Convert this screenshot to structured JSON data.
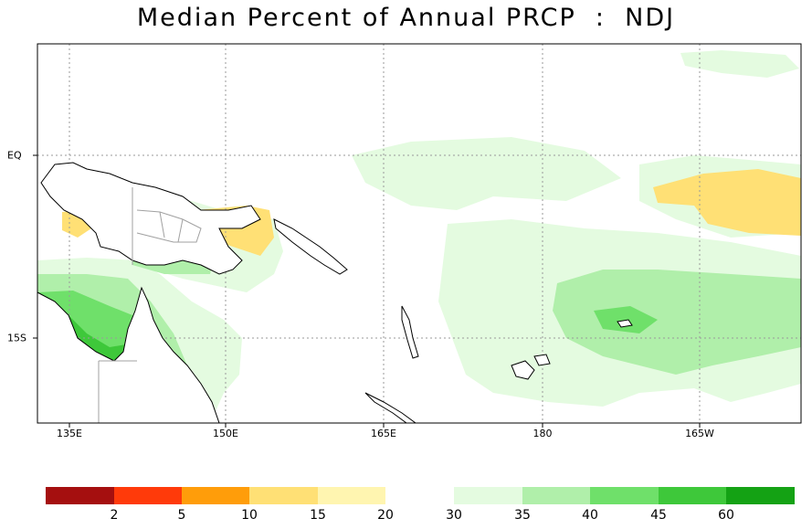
{
  "title": "Median Percent of Annual PRCP  :  NDJ",
  "x_ticks": [
    "135E",
    "150E",
    "165E",
    "180",
    "165W"
  ],
  "y_ticks": [
    "EQ",
    "15S"
  ],
  "legend": {
    "dry": {
      "colors": [
        "#a50f0f",
        "#ff3a0a",
        "#ff9d0a",
        "#ffe075",
        "#fff5b0"
      ],
      "labels": [
        "2",
        "5",
        "10",
        "15",
        "20"
      ]
    },
    "wet": {
      "colors": [
        "#e4fbe0",
        "#b0efaa",
        "#6fe06a",
        "#3ec83a",
        "#14a214"
      ],
      "labels": [
        "30",
        "35",
        "40",
        "45",
        "60"
      ]
    }
  },
  "colors": {
    "land_outline": "#000000",
    "grid": "#9a9a9a",
    "border_lines": "#a0a0a0"
  }
}
